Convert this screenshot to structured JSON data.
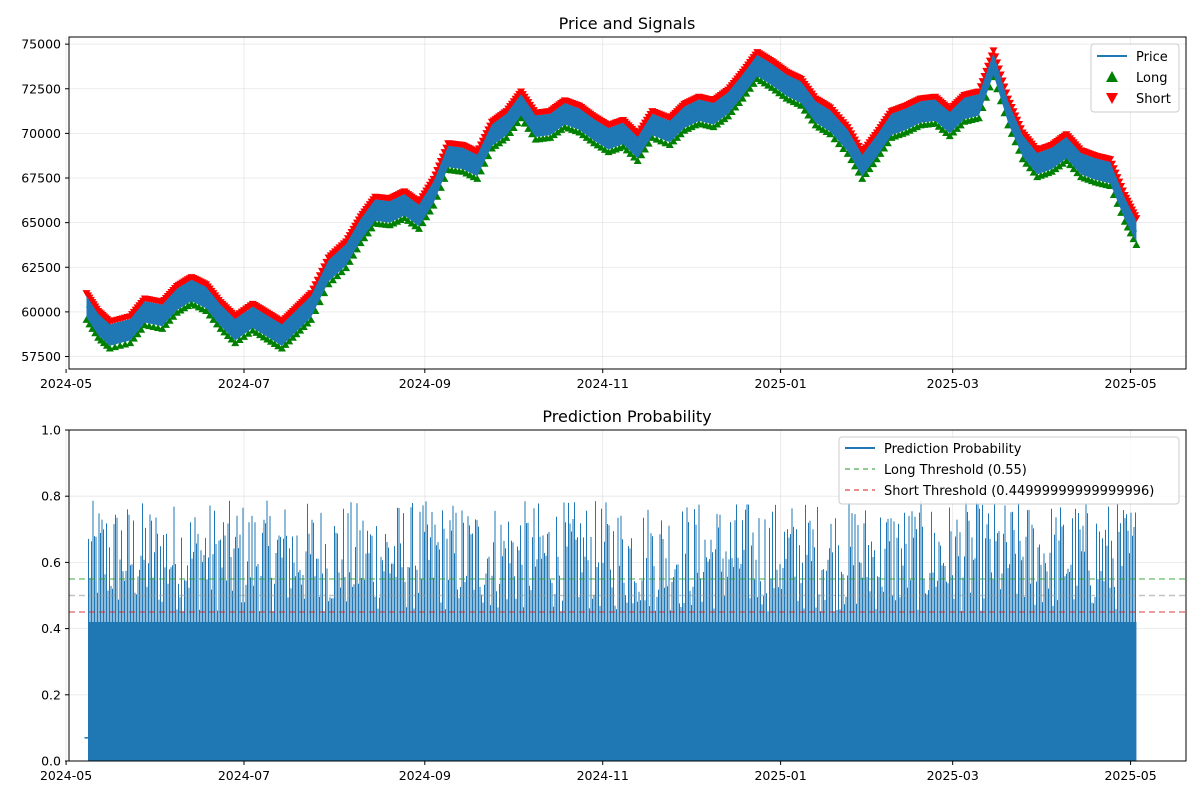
{
  "chart_data": [
    {
      "type": "line",
      "title": "Price and Signals",
      "xlabel": "",
      "ylabel": "",
      "x_range": [
        "2024-05-02",
        "2025-05-20"
      ],
      "ylim": [
        56800,
        75400
      ],
      "x_ticks": [
        "2024-05",
        "2024-07",
        "2024-09",
        "2024-11",
        "2025-01",
        "2025-03",
        "2025-05"
      ],
      "y_ticks": [
        "57500",
        "60000",
        "62500",
        "65000",
        "67500",
        "70000",
        "72500",
        "75000"
      ],
      "grid": true,
      "legend_position": "top-right",
      "series": [
        {
          "name": "Price",
          "kind": "line",
          "color": "#1f77b4",
          "band_half_width": 600,
          "x": [
            "2024-05-08",
            "2024-05-12",
            "2024-05-16",
            "2024-05-23",
            "2024-05-28",
            "2024-06-03",
            "2024-06-08",
            "2024-06-13",
            "2024-06-18",
            "2024-06-23",
            "2024-06-28",
            "2024-07-04",
            "2024-07-09",
            "2024-07-14",
            "2024-07-19",
            "2024-07-24",
            "2024-07-30",
            "2024-08-05",
            "2024-08-10",
            "2024-08-15",
            "2024-08-20",
            "2024-08-25",
            "2024-08-30",
            "2024-09-04",
            "2024-09-09",
            "2024-09-14",
            "2024-09-19",
            "2024-09-24",
            "2024-09-29",
            "2024-10-04",
            "2024-10-09",
            "2024-10-14",
            "2024-10-19",
            "2024-10-24",
            "2024-10-29",
            "2024-11-03",
            "2024-11-08",
            "2024-11-13",
            "2024-11-18",
            "2024-11-24",
            "2024-11-29",
            "2024-12-04",
            "2024-12-09",
            "2024-12-14",
            "2024-12-19",
            "2024-12-24",
            "2024-12-29",
            "2025-01-03",
            "2025-01-08",
            "2025-01-13",
            "2025-01-18",
            "2025-01-24",
            "2025-01-29",
            "2025-02-03",
            "2025-02-08",
            "2025-02-13",
            "2025-02-18",
            "2025-02-23",
            "2025-02-28",
            "2025-03-05",
            "2025-03-10",
            "2025-03-15",
            "2025-03-20",
            "2025-03-25",
            "2025-03-30",
            "2025-04-04",
            "2025-04-09",
            "2025-04-14",
            "2025-04-19",
            "2025-04-24",
            "2025-04-29",
            "2025-05-03"
          ],
          "y": [
            60300,
            59300,
            58700,
            59000,
            60000,
            59800,
            60700,
            61200,
            60800,
            59800,
            59000,
            59700,
            59200,
            58700,
            59500,
            60300,
            62300,
            63200,
            64600,
            65700,
            65600,
            66000,
            65400,
            66700,
            68700,
            68600,
            68200,
            69900,
            70500,
            71600,
            70400,
            70500,
            71100,
            70800,
            70200,
            69700,
            70000,
            69200,
            70500,
            70100,
            70900,
            71300,
            71100,
            71700,
            72700,
            73800,
            73300,
            72700,
            72300,
            71200,
            70700,
            69600,
            68200,
            69300,
            70500,
            70800,
            71200,
            71300,
            70600,
            71400,
            71600,
            73900,
            71200,
            69300,
            68300,
            68600,
            69200,
            68300,
            68000,
            67800,
            65800,
            64500
          ]
        },
        {
          "name": "Long",
          "kind": "marker",
          "marker": "triangle-up",
          "color": "#008000"
        },
        {
          "name": "Short",
          "kind": "marker",
          "marker": "triangle-down",
          "color": "#ff0000"
        }
      ]
    },
    {
      "type": "line",
      "title": "Prediction Probability",
      "xlabel": "",
      "ylabel": "",
      "x_range": [
        "2024-05-02",
        "2025-05-20"
      ],
      "ylim": [
        0.0,
        1.0
      ],
      "x_ticks": [
        "2024-05",
        "2024-07",
        "2024-09",
        "2024-11",
        "2025-01",
        "2025-03",
        "2025-05"
      ],
      "y_ticks": [
        "0.0",
        "0.2",
        "0.4",
        "0.6",
        "0.8",
        "1.0"
      ],
      "grid": true,
      "legend_position": "top-right",
      "data_range": [
        "2024-05-08",
        "2025-05-03"
      ],
      "typical_peak": 0.75,
      "max_peak": 0.84,
      "series": [
        {
          "name": "Prediction Probability",
          "kind": "line",
          "color": "#1f77b4"
        },
        {
          "name": "Long Threshold (0.55)",
          "kind": "hline",
          "y": 0.55,
          "color": "#2ca02c",
          "dash": true
        },
        {
          "name": "Short Threshold (0.44999999999999996)",
          "kind": "hline",
          "y": 0.45,
          "color": "#d62728",
          "dash": true
        }
      ],
      "reference_lines": [
        {
          "y": 0.5,
          "color": "#999999",
          "dash": true
        }
      ]
    }
  ]
}
